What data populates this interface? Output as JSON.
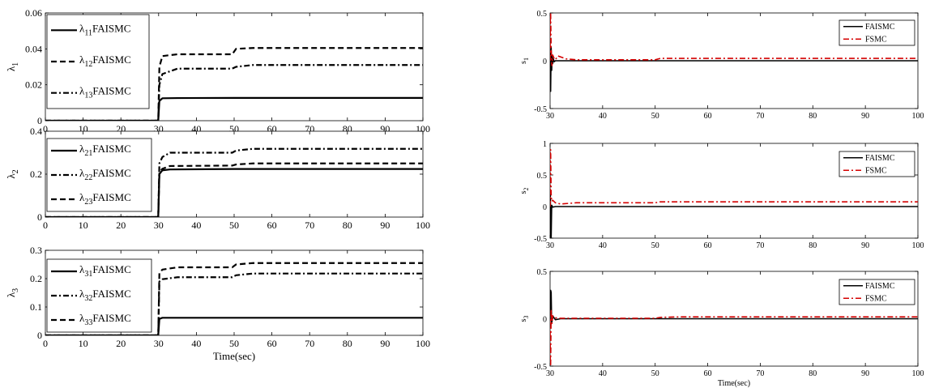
{
  "chart_data": [
    {
      "type": "line",
      "ylabel": "λ1",
      "xlabel": "",
      "xlim": [
        0,
        100
      ],
      "ylim": [
        0,
        0.06
      ],
      "xticks": [
        0,
        10,
        20,
        30,
        40,
        50,
        60,
        70,
        80,
        90,
        100
      ],
      "yticks": [
        0,
        0.02,
        0.04,
        0.06
      ],
      "ytick_labels": [
        "0",
        "0.02",
        "0.04",
        "0.06"
      ],
      "legend": "top-left",
      "series": [
        {
          "name": "λ11FAISMC",
          "style": "solid",
          "color": "#000000",
          "x": [
            0,
            29.9,
            30.2,
            31,
            35,
            50,
            100
          ],
          "y": [
            0,
            0,
            0.011,
            0.0125,
            0.0126,
            0.0127,
            0.0127
          ]
        },
        {
          "name": "λ12FAISMC",
          "style": "dashed",
          "color": "#000000",
          "x": [
            0,
            29.9,
            30.2,
            31,
            35,
            49.5,
            50.5,
            55,
            100
          ],
          "y": [
            0,
            0,
            0.03,
            0.036,
            0.037,
            0.037,
            0.04,
            0.0405,
            0.0405
          ]
        },
        {
          "name": "λ13FAISMC",
          "style": "dashdot",
          "color": "#000000",
          "x": [
            0,
            29.9,
            30.2,
            31,
            35,
            49.5,
            50.5,
            55,
            100
          ],
          "y": [
            0,
            0,
            0.02,
            0.026,
            0.029,
            0.029,
            0.03,
            0.031,
            0.031
          ]
        }
      ]
    },
    {
      "type": "line",
      "ylabel": "λ2",
      "xlabel": "",
      "xlim": [
        0,
        100
      ],
      "ylim": [
        0,
        0.4
      ],
      "xticks": [
        0,
        10,
        20,
        30,
        40,
        50,
        60,
        70,
        80,
        90,
        100
      ],
      "yticks": [
        0,
        0.2,
        0.4
      ],
      "ytick_labels": [
        "0",
        "0.2",
        "0.4"
      ],
      "legend": "top-left",
      "series": [
        {
          "name": "λ21FAISMC",
          "style": "solid",
          "color": "#000000",
          "x": [
            0,
            29.9,
            30.2,
            31,
            33,
            50,
            100
          ],
          "y": [
            0,
            0,
            0.2,
            0.218,
            0.222,
            0.224,
            0.224
          ]
        },
        {
          "name": "λ22FAISMC",
          "style": "dashdot",
          "color": "#000000",
          "x": [
            0,
            29.9,
            30.2,
            31,
            33,
            49.5,
            50.5,
            55,
            100
          ],
          "y": [
            0,
            0,
            0.25,
            0.28,
            0.3,
            0.3,
            0.31,
            0.318,
            0.318
          ]
        },
        {
          "name": "λ23FAISMC",
          "style": "dashed",
          "color": "#000000",
          "x": [
            0,
            29.9,
            30.2,
            31,
            33,
            49.5,
            50.5,
            55,
            100
          ],
          "y": [
            0,
            0,
            0.21,
            0.225,
            0.238,
            0.24,
            0.245,
            0.25,
            0.25
          ]
        }
      ]
    },
    {
      "type": "line",
      "ylabel": "λ3",
      "xlabel": "Time(sec)",
      "xlim": [
        0,
        100
      ],
      "ylim": [
        0,
        0.3
      ],
      "xticks": [
        0,
        10,
        20,
        30,
        40,
        50,
        60,
        70,
        80,
        90,
        100
      ],
      "yticks": [
        0,
        0.1,
        0.2,
        0.3
      ],
      "ytick_labels": [
        "0",
        "0.1",
        "0.2",
        "0.3"
      ],
      "legend": "top-left",
      "series": [
        {
          "name": "λ31FAISMC",
          "style": "solid",
          "color": "#000000",
          "x": [
            0,
            29.9,
            30.2,
            31,
            100
          ],
          "y": [
            0,
            0,
            0.058,
            0.062,
            0.062
          ]
        },
        {
          "name": "λ32FAISMC",
          "style": "dashdot",
          "color": "#000000",
          "x": [
            0,
            29.9,
            30.2,
            31,
            35,
            49.5,
            50.5,
            55,
            100
          ],
          "y": [
            0,
            0,
            0.19,
            0.198,
            0.205,
            0.205,
            0.212,
            0.218,
            0.218
          ]
        },
        {
          "name": "λ33FAISMC",
          "style": "dashed",
          "color": "#000000",
          "x": [
            0,
            29.9,
            30.2,
            31,
            35,
            49.5,
            50.5,
            55,
            100
          ],
          "y": [
            0,
            0,
            0.22,
            0.232,
            0.24,
            0.24,
            0.25,
            0.255,
            0.255
          ]
        }
      ]
    },
    {
      "type": "line",
      "ylabel": "s1",
      "xlabel": "",
      "xlim": [
        30,
        100
      ],
      "ylim": [
        -0.5,
        0.5
      ],
      "xticks": [
        30,
        40,
        50,
        60,
        70,
        80,
        90,
        100
      ],
      "yticks": [
        -0.5,
        0,
        0.5
      ],
      "ytick_labels": [
        "-0.5",
        "0",
        "0.5"
      ],
      "legend": "top-right",
      "series": [
        {
          "name": "FAISMC",
          "style": "solid",
          "color": "#000000",
          "x": [
            30,
            30.05,
            30.1,
            30.2,
            30.3,
            30.4,
            30.5,
            30.6,
            30.8,
            31,
            32,
            35,
            100
          ],
          "y": [
            0,
            0.08,
            -0.32,
            0.14,
            -0.1,
            0.05,
            -0.03,
            0.02,
            -0.01,
            0,
            0,
            0,
            0
          ]
        },
        {
          "name": "FSMC",
          "style": "dashdot",
          "color": "#d40000",
          "x": [
            30,
            30.05,
            30.1,
            30.2,
            30.35,
            30.5,
            30.8,
            31,
            31.5,
            32,
            33,
            35,
            50,
            51,
            55,
            100
          ],
          "y": [
            0,
            0.5,
            0.5,
            0.12,
            -0.05,
            0.06,
            0.02,
            0.01,
            0.05,
            0.04,
            0.02,
            0.01,
            0.01,
            0.025,
            0.025,
            0.025
          ]
        }
      ]
    },
    {
      "type": "line",
      "ylabel": "s2",
      "xlabel": "",
      "xlim": [
        30,
        100
      ],
      "ylim": [
        -0.5,
        1
      ],
      "xticks": [
        30,
        40,
        50,
        60,
        70,
        80,
        90,
        100
      ],
      "yticks": [
        -0.5,
        0,
        0.5,
        1
      ],
      "ytick_labels": [
        "-0.5",
        "0",
        "0.5",
        "1"
      ],
      "legend": "top-right",
      "series": [
        {
          "name": "FAISMC",
          "style": "solid",
          "color": "#000000",
          "x": [
            30,
            30.05,
            30.1,
            30.2,
            30.3,
            30.5,
            31,
            100
          ],
          "y": [
            0,
            0.2,
            -0.5,
            -0.5,
            0.02,
            -0.01,
            0,
            0
          ]
        },
        {
          "name": "FSMC",
          "style": "dashdot",
          "color": "#d40000",
          "x": [
            30,
            30.05,
            30.1,
            30.2,
            30.3,
            30.5,
            31,
            32,
            35,
            50,
            51,
            55,
            100
          ],
          "y": [
            0,
            0.9,
            0.9,
            0.2,
            0.08,
            0.1,
            0.06,
            0.04,
            0.06,
            0.06,
            0.075,
            0.075,
            0.075
          ]
        }
      ]
    },
    {
      "type": "line",
      "ylabel": "s3",
      "xlabel": "Time(sec)",
      "xlim": [
        30,
        100
      ],
      "ylim": [
        -0.5,
        0.5
      ],
      "xticks": [
        30,
        40,
        50,
        60,
        70,
        80,
        90,
        100
      ],
      "yticks": [
        -0.5,
        0,
        0.5
      ],
      "ytick_labels": [
        "-0.5",
        "0",
        "0.5"
      ],
      "legend": "top-right",
      "series": [
        {
          "name": "FAISMC",
          "style": "solid",
          "color": "#000000",
          "x": [
            30,
            30.05,
            30.1,
            30.2,
            30.3,
            30.5,
            31,
            32,
            100
          ],
          "y": [
            0,
            0.1,
            0.3,
            0.28,
            -0.05,
            0.03,
            -0.01,
            0,
            0
          ]
        },
        {
          "name": "FSMC",
          "style": "dashdot",
          "color": "#d40000",
          "x": [
            30,
            30.05,
            30.1,
            30.2,
            30.35,
            30.5,
            31,
            32,
            35,
            50,
            51,
            55,
            100
          ],
          "y": [
            0,
            -0.5,
            -0.5,
            0.1,
            -0.05,
            0.03,
            0.01,
            0.005,
            0.005,
            0.005,
            0.015,
            0.02,
            0.02
          ]
        }
      ]
    }
  ]
}
